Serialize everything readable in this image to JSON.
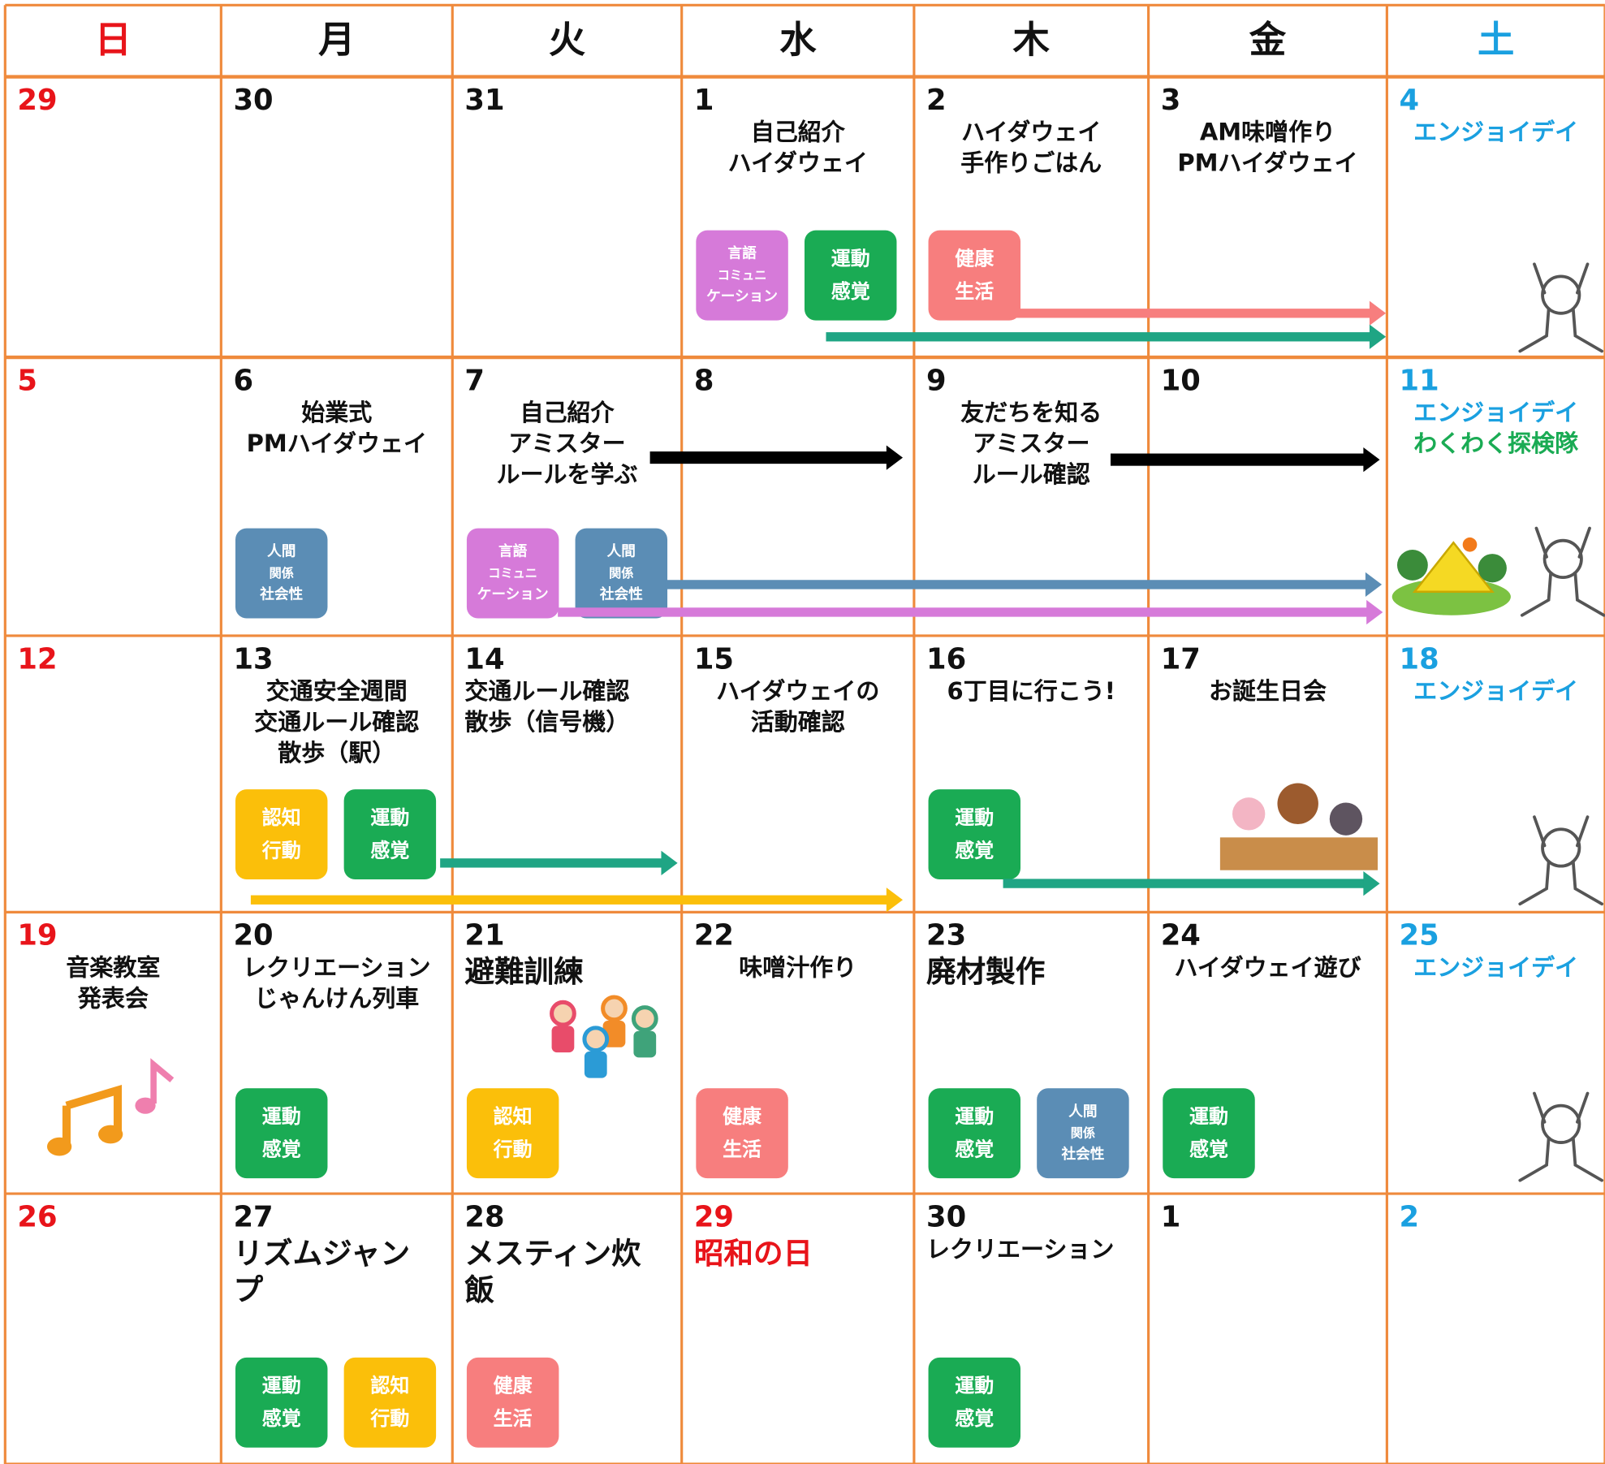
{
  "header": {
    "weekdays": [
      "日",
      "月",
      "火",
      "水",
      "木",
      "金",
      "土"
    ]
  },
  "weeks": [
    {
      "days": [
        {
          "date": "29"
        },
        {
          "date": "30"
        },
        {
          "date": "31"
        },
        {
          "date": "1",
          "events": [
            "自己紹介",
            "ハイダウェイ"
          ],
          "tags": [
            {
              "lines": [
                "言語",
                "コミュニ",
                "ケーション"
              ],
              "color": "#d67ad9"
            },
            {
              "lines": [
                "運動",
                "感覚"
              ],
              "color": "#1aab54"
            }
          ]
        },
        {
          "date": "2",
          "events": [
            "ハイダウェイ",
            "手作りごはん"
          ],
          "tags": [
            {
              "lines": [
                "健康",
                "生活"
              ],
              "color": "#f77e7e"
            }
          ]
        },
        {
          "date": "3",
          "events": [
            "AM味噌作り",
            "PMハイダウェイ"
          ]
        },
        {
          "date": "4",
          "events": [
            "エンジョイデイ"
          ]
        }
      ]
    },
    {
      "days": [
        {
          "date": "5"
        },
        {
          "date": "6",
          "events": [
            "始業式",
            "PMハイダウェイ"
          ],
          "tags": [
            {
              "lines": [
                "人間",
                "関係",
                "社会性"
              ],
              "color": "#5b8db5"
            }
          ]
        },
        {
          "date": "7",
          "events": [
            "自己紹介",
            "アミスター",
            "ルールを学ぶ"
          ],
          "tags": [
            {
              "lines": [
                "言語",
                "コミュニ",
                "ケーション"
              ],
              "color": "#d67ad9"
            },
            {
              "lines": [
                "人間",
                "関係",
                "社会性"
              ],
              "color": "#5b8db5"
            }
          ]
        },
        {
          "date": "8"
        },
        {
          "date": "9",
          "events": [
            "友だちを知る",
            "アミスター",
            "ルール確認"
          ]
        },
        {
          "date": "10"
        },
        {
          "date": "11",
          "events": [
            "エンジョイデイ",
            "わくわく探検隊"
          ],
          "event_colors": [
            "#1aa0e0",
            "#1aab54"
          ]
        }
      ]
    },
    {
      "days": [
        {
          "date": "12"
        },
        {
          "date": "13",
          "events": [
            "交通安全週間",
            "交通ルール確認",
            "散歩（駅）"
          ],
          "tags": [
            {
              "lines": [
                "認知",
                "行動"
              ],
              "color": "#fbbf0a"
            },
            {
              "lines": [
                "運動",
                "感覚"
              ],
              "color": "#1aab54"
            }
          ]
        },
        {
          "date": "14",
          "events": [
            "交通ルール確認",
            "散歩（信号機）"
          ]
        },
        {
          "date": "15",
          "events": [
            "ハイダウェイの",
            "活動確認"
          ]
        },
        {
          "date": "16",
          "events": [
            "6丁目に行こう!"
          ],
          "tags": [
            {
              "lines": [
                "運動",
                "感覚"
              ],
              "color": "#1aab54"
            }
          ]
        },
        {
          "date": "17",
          "events": [
            "お誕生日会"
          ]
        },
        {
          "date": "18",
          "events": [
            "エンジョイデイ"
          ]
        }
      ]
    },
    {
      "days": [
        {
          "date": "19",
          "events": [
            "音楽教室",
            "発表会"
          ]
        },
        {
          "date": "20",
          "events": [
            "レクリエーション",
            "じゃんけん列車"
          ],
          "tags": [
            {
              "lines": [
                "運動",
                "感覚"
              ],
              "color": "#1aab54"
            }
          ]
        },
        {
          "date": "21",
          "events": [
            "避難訓練"
          ],
          "tags": [
            {
              "lines": [
                "認知",
                "行動"
              ],
              "color": "#fbbf0a"
            }
          ]
        },
        {
          "date": "22",
          "events": [
            "味噌汁作り"
          ],
          "tags": [
            {
              "lines": [
                "健康",
                "生活"
              ],
              "color": "#f77e7e"
            }
          ]
        },
        {
          "date": "23",
          "events": [
            "廃材製作"
          ],
          "tags": [
            {
              "lines": [
                "運動",
                "感覚"
              ],
              "color": "#1aab54"
            },
            {
              "lines": [
                "人間",
                "関係",
                "社会性"
              ],
              "color": "#5b8db5"
            }
          ]
        },
        {
          "date": "24",
          "events": [
            "ハイダウェイ遊び"
          ],
          "tags": [
            {
              "lines": [
                "運動",
                "感覚"
              ],
              "color": "#1aab54"
            }
          ]
        },
        {
          "date": "25",
          "events": [
            "エンジョイデイ"
          ]
        }
      ]
    },
    {
      "days": [
        {
          "date": "26"
        },
        {
          "date": "27",
          "events": [
            "リズムジャン",
            "プ"
          ],
          "tags": [
            {
              "lines": [
                "運動",
                "感覚"
              ],
              "color": "#1aab54"
            },
            {
              "lines": [
                "認知",
                "行動"
              ],
              "color": "#fbbf0a"
            }
          ]
        },
        {
          "date": "28",
          "events": [
            "メスティン炊",
            "飯"
          ],
          "tags": [
            {
              "lines": [
                "健康",
                "生活"
              ],
              "color": "#f77e7e"
            }
          ]
        },
        {
          "date": "29",
          "events": [
            "昭和の日"
          ],
          "holiday": true
        },
        {
          "date": "30",
          "events": [
            "レクリエーション"
          ],
          "tags": [
            {
              "lines": [
                "運動",
                "感覚"
              ],
              "color": "#1aab54"
            }
          ]
        },
        {
          "date": "1"
        },
        {
          "date": "2"
        }
      ]
    }
  ]
}
